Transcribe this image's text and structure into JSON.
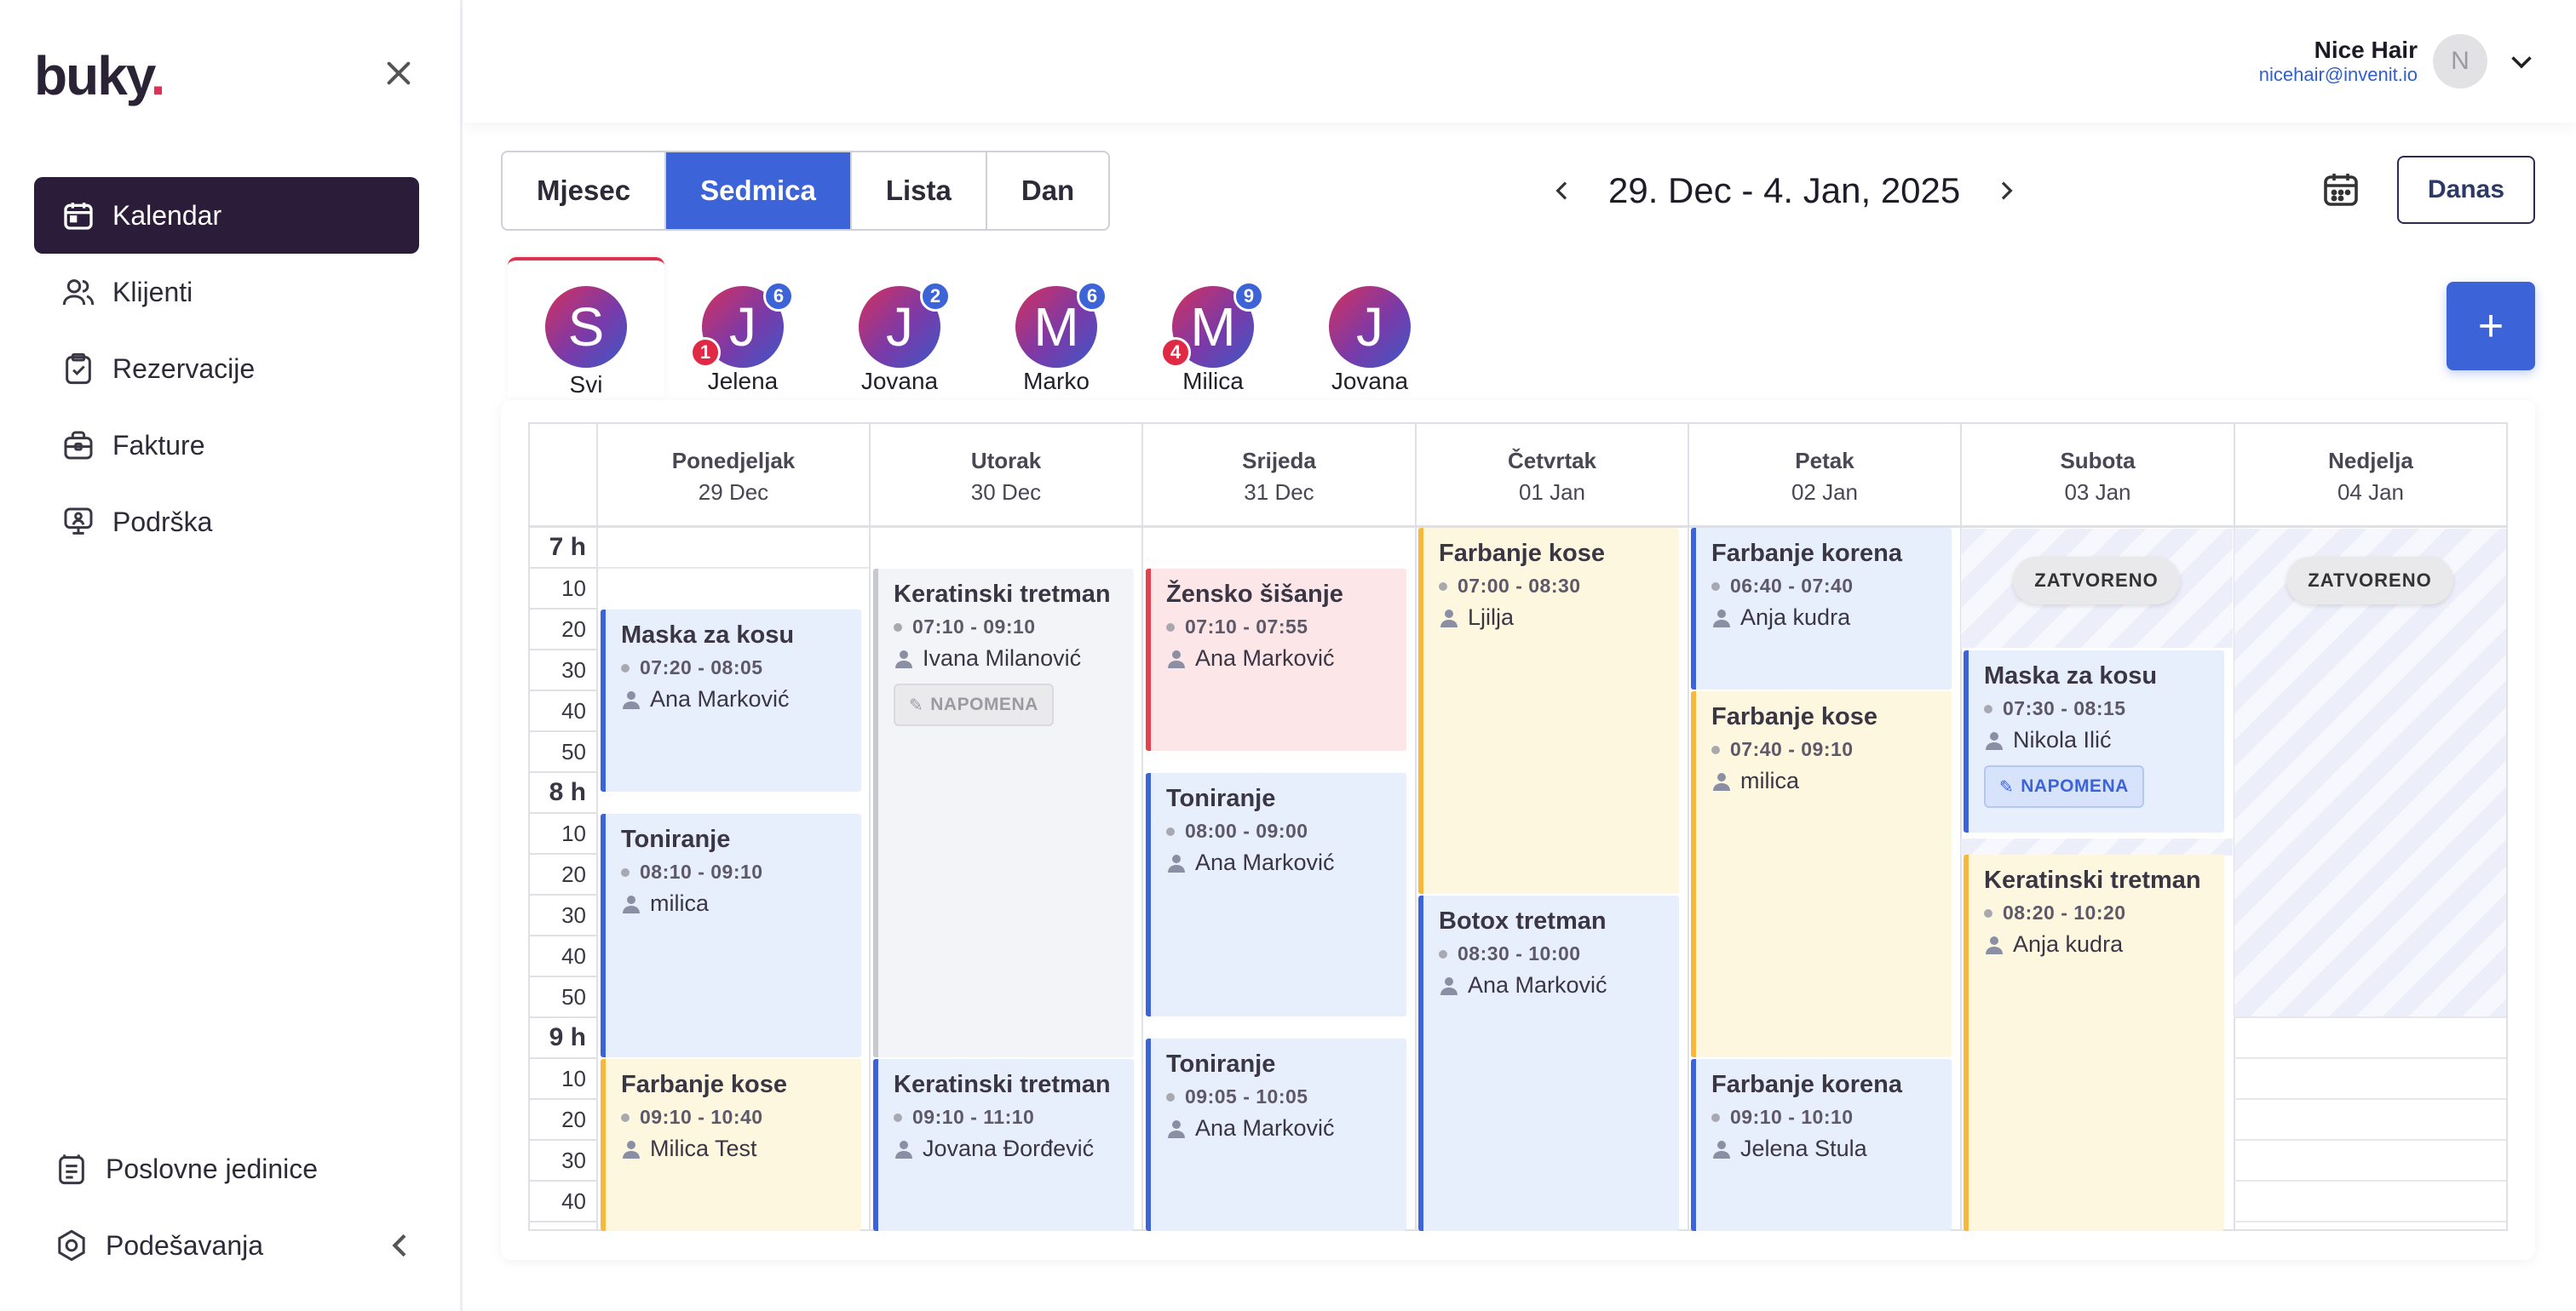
{
  "brand": {
    "logo_text": "buky",
    "logo_dot": "."
  },
  "sidebar": {
    "items": [
      {
        "label": "Kalendar",
        "icon": "calendar-icon"
      },
      {
        "label": "Klijenti",
        "icon": "users-icon"
      },
      {
        "label": "Rezervacije",
        "icon": "clipboard-check-icon"
      },
      {
        "label": "Fakture",
        "icon": "briefcase-icon"
      },
      {
        "label": "Podrška",
        "icon": "support-icon"
      }
    ],
    "bottom": [
      {
        "label": "Poslovne jedinice",
        "icon": "units-icon"
      },
      {
        "label": "Podešavanja",
        "icon": "settings-icon"
      }
    ]
  },
  "user": {
    "name": "Nice Hair",
    "email": "nicehair@invenit.io",
    "avatar_letter": "N"
  },
  "views": [
    "Mjesec",
    "Sedmica",
    "Lista",
    "Dan"
  ],
  "active_view": "Sedmica",
  "date_range": "29. Dec - 4. Jan, 2025",
  "today_label": "Danas",
  "add_label": "+",
  "staff": [
    {
      "letter": "S",
      "name": "Svi"
    },
    {
      "letter": "J",
      "name": "Jelena",
      "count": "6",
      "alert": "1"
    },
    {
      "letter": "J",
      "name": "Jovana",
      "count": "2"
    },
    {
      "letter": "M",
      "name": "Marko",
      "count": "6"
    },
    {
      "letter": "M",
      "name": "Milica",
      "count": "9",
      "alert": "4"
    },
    {
      "letter": "J",
      "name": "Jovana"
    }
  ],
  "days": [
    {
      "name": "Ponedjeljak",
      "date": "29 Dec"
    },
    {
      "name": "Utorak",
      "date": "30 Dec"
    },
    {
      "name": "Srijeda",
      "date": "31 Dec"
    },
    {
      "name": "Četvrtak",
      "date": "01 Jan"
    },
    {
      "name": "Petak",
      "date": "02 Jan"
    },
    {
      "name": "Subota",
      "date": "03 Jan"
    },
    {
      "name": "Nedjelja",
      "date": "04 Jan"
    }
  ],
  "ticks": [
    "7 h",
    "10",
    "20",
    "30",
    "40",
    "50",
    "8 h",
    "10",
    "20",
    "30",
    "40",
    "50",
    "9 h",
    "10",
    "20",
    "30",
    "40"
  ],
  "closed_label": "ZATVORENO",
  "note_label": "NAPOMENA",
  "colors": {
    "accent": "#3c64d8",
    "sidebar_active": "#2b1c3a",
    "alert": "#e02a45"
  },
  "appointments": {
    "mon1": {
      "title": "Maska za kosu",
      "time": "07:20 - 08:05",
      "client": "Ana Marković"
    },
    "mon2": {
      "title": "Toniranje",
      "time": "08:10 - 09:10",
      "client": "milica"
    },
    "mon3": {
      "title": "Farbanje kose",
      "time": "09:10 - 10:40",
      "client": "Milica Test"
    },
    "tue1": {
      "title": "Keratinski tretman",
      "time": "07:10 - 09:10",
      "client": "Ivana Milanović"
    },
    "tue2": {
      "title": "Keratinski tretman",
      "time": "09:10 - 11:10",
      "client": "Jovana Đorđević"
    },
    "wed1": {
      "title": "Žensko šišanje",
      "time": "07:10 - 07:55",
      "client": "Ana Marković"
    },
    "wed2": {
      "title": "Toniranje",
      "time": "08:00 - 09:00",
      "client": "Ana Marković"
    },
    "wed3": {
      "title": "Toniranje",
      "time": "09:05 - 10:05",
      "client": "Ana Marković"
    },
    "thu1": {
      "title": "Farbanje kose",
      "time": "07:00 - 08:30",
      "client": "Ljilja"
    },
    "thu2": {
      "title": "Botox tretman",
      "time": "08:30 - 10:00",
      "client": "Ana Marković"
    },
    "fri1": {
      "title": "Farbanje korena",
      "time": "06:40 - 07:40",
      "client": "Anja kudra"
    },
    "fri2": {
      "title": "Farbanje kose",
      "time": "07:40 - 09:10",
      "client": "milica"
    },
    "fri3": {
      "title": "Farbanje korena",
      "time": "09:10 - 10:10",
      "client": "Jelena Stula"
    },
    "sat1": {
      "title": "Maska za kosu",
      "time": "07:30 - 08:15",
      "client": "Nikola Ilić"
    },
    "sat2": {
      "title": "Keratinski tretman",
      "time": "08:20 - 10:20",
      "client": "Anja kudra"
    }
  }
}
